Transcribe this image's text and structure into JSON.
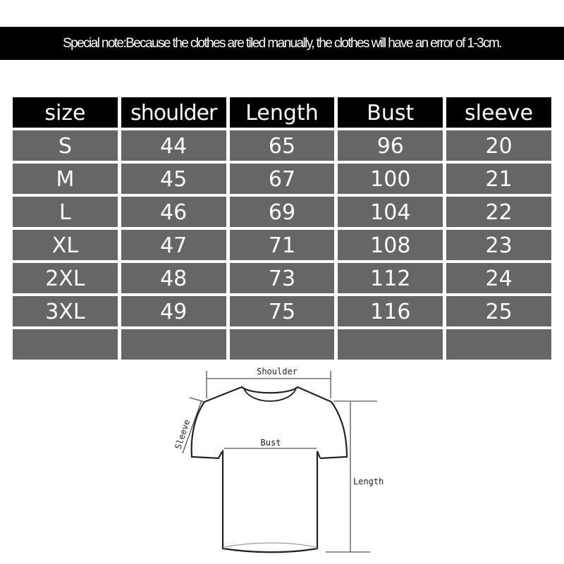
{
  "note": "Special note:Because the clothes are tiled manually, the clothes will have an error of 1-3cm.",
  "table": {
    "headers": [
      "size",
      "shoulder",
      "Length",
      "Bust",
      "sleeve"
    ],
    "rows": [
      [
        "S",
        "44",
        "65",
        "96",
        "20"
      ],
      [
        "M",
        "45",
        "67",
        "100",
        "21"
      ],
      [
        "L",
        "46",
        "69",
        "104",
        "22"
      ],
      [
        "XL",
        "47",
        "71",
        "108",
        "23"
      ],
      [
        "2XL",
        "48",
        "73",
        "112",
        "24"
      ],
      [
        "3XL",
        "49",
        "75",
        "116",
        "25"
      ],
      [
        "",
        "",
        "",
        "",
        ""
      ]
    ]
  },
  "diagram": {
    "shoulder_label": "Shoulder",
    "sleeve_label": "Sleeve",
    "bust_label": "Bust",
    "length_label": "Length"
  },
  "colors": {
    "header_bg": "#000000",
    "row_bg": "#666666",
    "text": "#ffffff"
  }
}
